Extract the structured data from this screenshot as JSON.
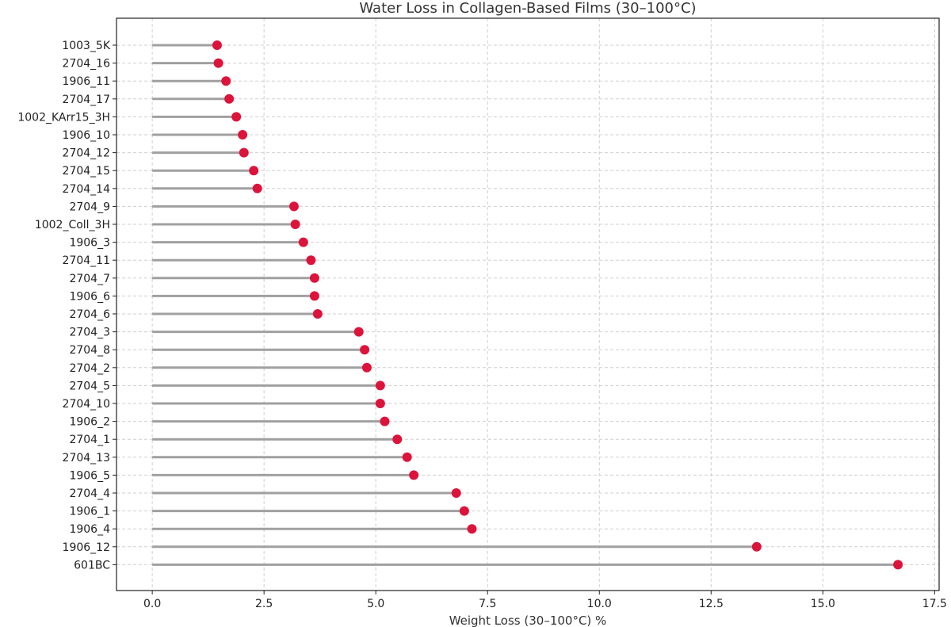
{
  "chart_data": {
    "type": "lollipop",
    "title": "Water Loss in Collagen-Based Films (30–100°C)",
    "xlabel": "Weight Loss (30–100°C) %",
    "ylabel": "",
    "xlim": [
      -0.8,
      17.6
    ],
    "xticks": [
      0.0,
      2.5,
      5.0,
      7.5,
      10.0,
      12.5,
      15.0,
      17.5
    ],
    "xtick_labels": [
      "0.0",
      "2.5",
      "5.0",
      "7.5",
      "10.0",
      "12.5",
      "15.0",
      "17.5"
    ],
    "grid": true,
    "colors": {
      "marker": "#dc143c",
      "stem": "#a0a0a0",
      "grid": "#cfcfcf"
    },
    "categories": [
      "1003_5K",
      "2704_16",
      "1906_11",
      "2704_17",
      "1002_KArr15_3H",
      "1906_10",
      "2704_12",
      "2704_15",
      "2704_14",
      "2704_9",
      "1002_Coll_3H",
      "1906_3",
      "2704_11",
      "2704_7",
      "1906_6",
      "2704_6",
      "2704_3",
      "2704_8",
      "2704_2",
      "2704_5",
      "2704_10",
      "1906_2",
      "2704_1",
      "2704_13",
      "1906_5",
      "2704_4",
      "1906_1",
      "1906_4",
      "1906_12",
      "601BC"
    ],
    "values": [
      1.45,
      1.48,
      1.65,
      1.72,
      1.88,
      2.02,
      2.05,
      2.27,
      2.35,
      3.17,
      3.2,
      3.38,
      3.55,
      3.63,
      3.63,
      3.7,
      4.62,
      4.75,
      4.8,
      5.1,
      5.1,
      5.2,
      5.48,
      5.7,
      5.85,
      6.8,
      6.98,
      7.15,
      13.52,
      16.68
    ]
  }
}
